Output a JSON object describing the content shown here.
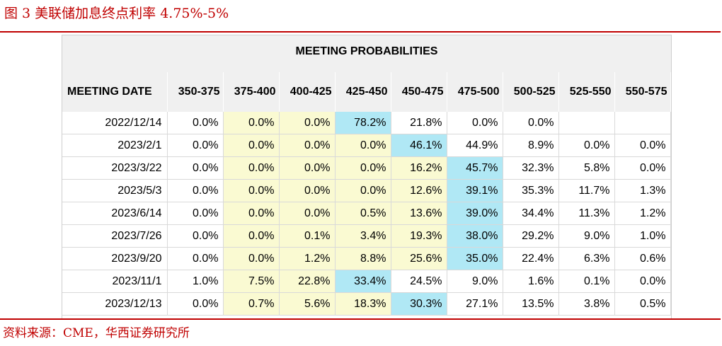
{
  "figure_title": "图 3 美联储加息终点利率 4.75%-5%",
  "source_note": "资料来源：CME，华西证券研究所",
  "table": {
    "title": "MEETING PROBABILITIES",
    "columns": [
      "MEETING DATE",
      "350-375",
      "375-400",
      "400-425",
      "425-450",
      "450-475",
      "475-500",
      "500-525",
      "525-550",
      "550-575"
    ],
    "rows": [
      {
        "date": "2022/12/14",
        "cells": [
          "0.0%",
          "0.0%",
          "0.0%",
          "78.2%",
          "21.8%",
          "0.0%",
          "0.0%",
          "",
          ""
        ],
        "hl": [
          "",
          "y",
          "y",
          "b",
          "",
          "",
          "",
          "",
          ""
        ]
      },
      {
        "date": "2023/2/1",
        "cells": [
          "0.0%",
          "0.0%",
          "0.0%",
          "0.0%",
          "46.1%",
          "44.9%",
          "8.9%",
          "0.0%",
          "0.0%"
        ],
        "hl": [
          "",
          "y",
          "y",
          "y",
          "b",
          "",
          "",
          "",
          ""
        ]
      },
      {
        "date": "2023/3/22",
        "cells": [
          "0.0%",
          "0.0%",
          "0.0%",
          "0.0%",
          "16.2%",
          "45.7%",
          "32.3%",
          "5.8%",
          "0.0%"
        ],
        "hl": [
          "",
          "y",
          "y",
          "y",
          "y",
          "b",
          "",
          "",
          ""
        ]
      },
      {
        "date": "2023/5/3",
        "cells": [
          "0.0%",
          "0.0%",
          "0.0%",
          "0.0%",
          "12.6%",
          "39.1%",
          "35.3%",
          "11.7%",
          "1.3%"
        ],
        "hl": [
          "",
          "y",
          "y",
          "y",
          "y",
          "b",
          "",
          "",
          ""
        ]
      },
      {
        "date": "2023/6/14",
        "cells": [
          "0.0%",
          "0.0%",
          "0.0%",
          "0.5%",
          "13.6%",
          "39.0%",
          "34.4%",
          "11.3%",
          "1.2%"
        ],
        "hl": [
          "",
          "y",
          "y",
          "y",
          "y",
          "b",
          "",
          "",
          ""
        ]
      },
      {
        "date": "2023/7/26",
        "cells": [
          "0.0%",
          "0.0%",
          "0.1%",
          "3.4%",
          "19.3%",
          "38.0%",
          "29.2%",
          "9.0%",
          "1.0%"
        ],
        "hl": [
          "",
          "y",
          "y",
          "y",
          "y",
          "b",
          "",
          "",
          ""
        ]
      },
      {
        "date": "2023/9/20",
        "cells": [
          "0.0%",
          "0.0%",
          "1.2%",
          "8.8%",
          "25.6%",
          "35.0%",
          "22.4%",
          "6.3%",
          "0.6%"
        ],
        "hl": [
          "",
          "y",
          "y",
          "y",
          "y",
          "b",
          "",
          "",
          ""
        ]
      },
      {
        "date": "2023/11/1",
        "cells": [
          "1.0%",
          "7.5%",
          "22.8%",
          "33.4%",
          "24.5%",
          "9.0%",
          "1.6%",
          "0.1%",
          "0.0%"
        ],
        "hl": [
          "",
          "y",
          "y",
          "b",
          "",
          "",
          "",
          "",
          ""
        ]
      },
      {
        "date": "2023/12/13",
        "cells": [
          "0.0%",
          "0.7%",
          "5.6%",
          "18.3%",
          "30.3%",
          "27.1%",
          "13.5%",
          "3.8%",
          "0.5%"
        ],
        "hl": [
          "",
          "y",
          "y",
          "y",
          "b",
          "",
          "",
          "",
          ""
        ]
      }
    ]
  },
  "colors": {
    "accent_red": "#c00000",
    "highlight_yellow": "#fafad2",
    "highlight_blue": "#b0e8f5"
  }
}
